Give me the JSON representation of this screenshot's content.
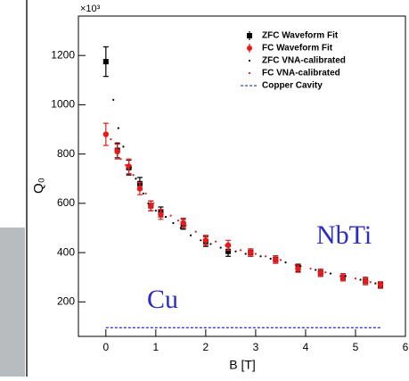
{
  "chart_data": {
    "type": "scatter",
    "xlabel": "B [T]",
    "ylabel": "Q₀",
    "y_multiplier": "×10³",
    "xlim": [
      -0.55,
      6
    ],
    "ylim": [
      60,
      1360
    ],
    "xticks": [
      0,
      1,
      2,
      3,
      4,
      5,
      6
    ],
    "yticks": [
      200,
      400,
      600,
      800,
      1000,
      1200
    ],
    "legend": "upper right",
    "annotations": [
      "NbTi",
      "Cu"
    ],
    "series": [
      {
        "name": "ZFC Waveform Fit",
        "color": "#000000",
        "marker": "square",
        "x": [
          0,
          0.23,
          0.46,
          0.68,
          0.9,
          1.1,
          1.55,
          2.0,
          2.45,
          2.9,
          3.4,
          3.85,
          4.3,
          4.75,
          5.2,
          5.5
        ],
        "values": [
          1175,
          815,
          745,
          680,
          590,
          565,
          515,
          445,
          405,
          400,
          372,
          338,
          318,
          300,
          285,
          268
        ],
        "errors": [
          60,
          30,
          30,
          25,
          20,
          20,
          20,
          20,
          20,
          15,
          15,
          15,
          15,
          15,
          15,
          12
        ]
      },
      {
        "name": "FC Waveform Fit",
        "color": "#e8191b",
        "marker": "circle",
        "x": [
          0,
          0.23,
          0.46,
          0.68,
          0.9,
          1.1,
          1.55,
          2.0,
          2.45,
          2.9,
          3.4,
          3.85,
          4.3,
          4.75,
          5.2,
          5.5
        ],
        "values": [
          880,
          810,
          750,
          660,
          590,
          555,
          520,
          450,
          430,
          400,
          372,
          335,
          318,
          300,
          285,
          270
        ],
        "errors": [
          45,
          30,
          30,
          25,
          20,
          20,
          20,
          20,
          20,
          15,
          15,
          15,
          15,
          15,
          15,
          12
        ]
      },
      {
        "name": "ZFC VNA-calibrated",
        "color": "#000000",
        "marker": "dot",
        "x": [
          0.15,
          0.25,
          0.35,
          0.5,
          0.6,
          0.75,
          0.85,
          1.0,
          1.2,
          1.35,
          1.5,
          1.7,
          1.9,
          2.1,
          2.3,
          2.6,
          2.8,
          3.1,
          3.3,
          3.6,
          3.9,
          4.2,
          4.5,
          4.8,
          5.1,
          5.4
        ],
        "values": [
          1020,
          905,
          830,
          745,
          700,
          640,
          600,
          570,
          545,
          520,
          500,
          470,
          450,
          435,
          420,
          405,
          395,
          385,
          375,
          360,
          345,
          330,
          315,
          305,
          290,
          275
        ]
      },
      {
        "name": "FC VNA-calibrated",
        "color": "#e8191b",
        "marker": "dot",
        "x": [
          0.1,
          0.2,
          0.3,
          0.4,
          0.55,
          0.7,
          0.8,
          0.95,
          1.1,
          1.3,
          1.45,
          1.6,
          1.8,
          2.0,
          2.2,
          2.4,
          2.7,
          3.0,
          3.2,
          3.5,
          3.8,
          4.1,
          4.4,
          4.7,
          5.0,
          5.3,
          5.5
        ],
        "values": [
          860,
          820,
          780,
          755,
          715,
          670,
          640,
          600,
          575,
          550,
          530,
          510,
          485,
          465,
          445,
          430,
          410,
          395,
          385,
          370,
          350,
          335,
          320,
          305,
          295,
          280,
          270
        ]
      },
      {
        "name": "Copper Cavity",
        "color": "#3a3ad0",
        "marker": "dashed-line",
        "x": [
          0,
          5.5
        ],
        "values": [
          95,
          95
        ]
      }
    ]
  }
}
